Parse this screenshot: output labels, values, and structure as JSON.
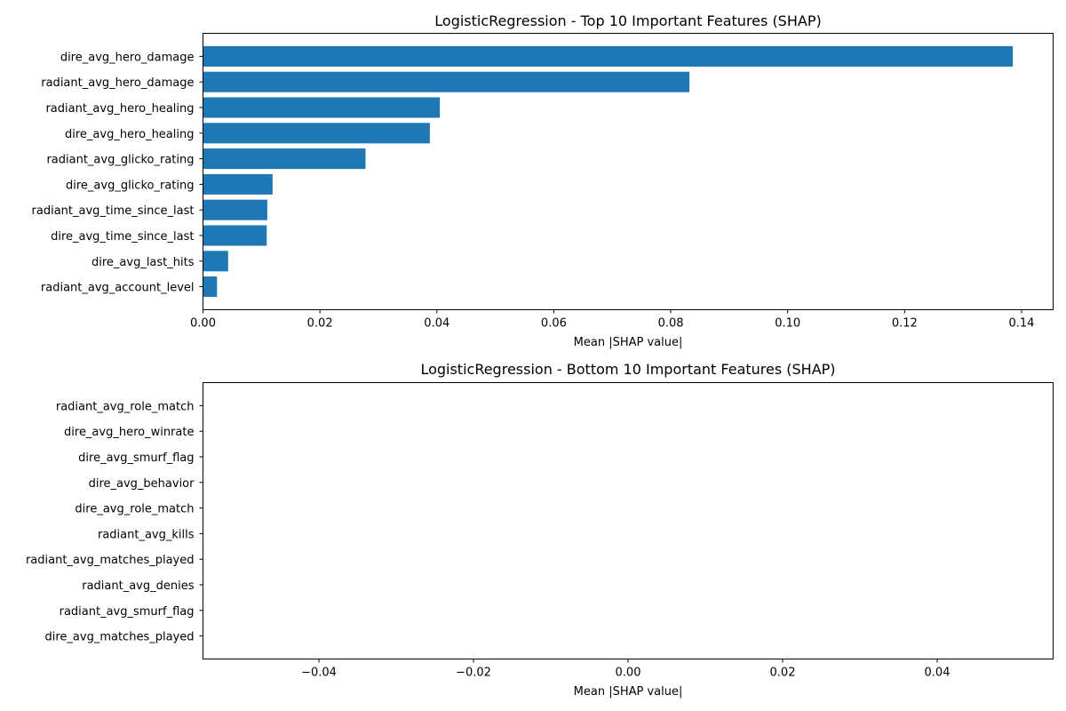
{
  "chart_data": [
    {
      "type": "bar",
      "orientation": "horizontal",
      "title": "LogisticRegression - Top 10 Important Features (SHAP)",
      "xlabel": "Mean |SHAP value|",
      "ylabel": "",
      "xlim": [
        0,
        0.1454
      ],
      "xticks": [
        0.0,
        0.02,
        0.04,
        0.06,
        0.08,
        0.1,
        0.12,
        0.14
      ],
      "xtick_labels": [
        "0.00",
        "0.02",
        "0.04",
        "0.06",
        "0.08",
        "0.10",
        "0.12",
        "0.14"
      ],
      "categories": [
        "radiant_avg_account_level",
        "dire_avg_last_hits",
        "dire_avg_time_since_last",
        "radiant_avg_time_since_last",
        "dire_avg_glicko_rating",
        "radiant_avg_glicko_rating",
        "dire_avg_hero_healing",
        "radiant_avg_hero_healing",
        "radiant_avg_hero_damage",
        "dire_avg_hero_damage"
      ],
      "values": [
        0.0024,
        0.0043,
        0.0109,
        0.011,
        0.0119,
        0.0278,
        0.0388,
        0.0405,
        0.0832,
        0.1385
      ],
      "color": "#1f77b4",
      "grid": false
    },
    {
      "type": "bar",
      "orientation": "horizontal",
      "title": "LogisticRegression - Bottom 10 Important Features (SHAP)",
      "xlabel": "Mean |SHAP value|",
      "ylabel": "",
      "xlim": [
        -0.055,
        0.055
      ],
      "xticks": [
        -0.04,
        -0.02,
        0.0,
        0.02,
        0.04
      ],
      "xtick_labels": [
        "−0.04",
        "−0.02",
        "0.00",
        "0.02",
        "0.04"
      ],
      "categories": [
        "dire_avg_matches_played",
        "radiant_avg_smurf_flag",
        "radiant_avg_denies",
        "radiant_avg_matches_played",
        "radiant_avg_kills",
        "dire_avg_role_match",
        "dire_avg_behavior",
        "dire_avg_smurf_flag",
        "dire_avg_hero_winrate",
        "radiant_avg_role_match"
      ],
      "values": [
        0,
        0,
        0,
        0,
        0,
        0,
        0,
        0,
        0,
        0
      ],
      "color": "#1f77b4",
      "grid": false
    }
  ]
}
